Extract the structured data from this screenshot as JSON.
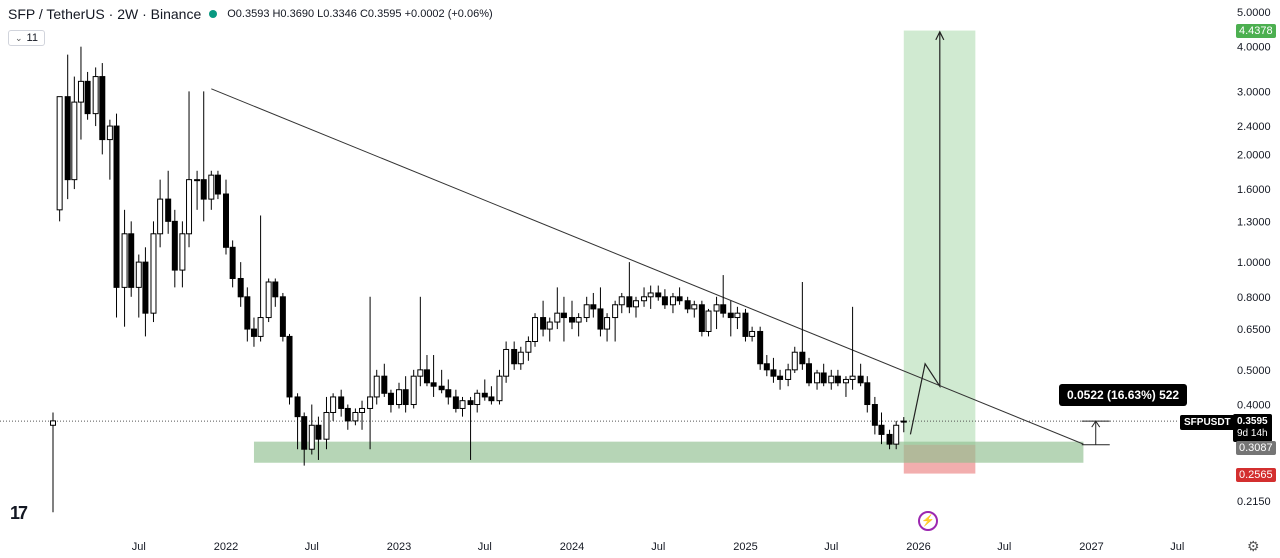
{
  "header": {
    "symbol": "SFP / TetherUS · 2W · Binance",
    "ohlc": "O0.3593 H0.3690 L0.3346 C0.3595 +0.0002 (+0.06%)"
  },
  "indicator_badge": "11",
  "tooltip": "0.0522 (16.63%) 522",
  "symbol_label": "SFPUSDT",
  "current_price": "0.3595",
  "countdown": "9d 14h",
  "price_labels": {
    "target": "4.4378",
    "entry": "0.3087",
    "stop": "0.2565"
  },
  "colors": {
    "up": "#089981",
    "down": "#000000",
    "target_zone": "#c8e6c9",
    "support_zone": "#8fbf8f",
    "stop_zone": "#ef9a9a"
  },
  "icons": [
    "tradingview-logo-icon",
    "lightning-icon",
    "gear-icon",
    "chevron-down-icon"
  ],
  "chart_data": {
    "type": "candlestick",
    "scale": "log",
    "y_ticks": [
      5.0,
      4.0,
      3.0,
      2.4,
      2.0,
      1.6,
      1.3,
      1.0,
      0.8,
      0.65,
      0.5,
      0.4,
      0.215
    ],
    "y_tick_labels": [
      "5.0000",
      "4.0000",
      "3.0000",
      "2.4000",
      "2.0000",
      "1.6000",
      "1.3000",
      "1.0000",
      "0.8000",
      "0.6500",
      "0.5000",
      "0.4000",
      "0.2150"
    ],
    "x_tick_labels": [
      "Jul",
      "2022",
      "Jul",
      "2023",
      "Jul",
      "2024",
      "Jul",
      "2025",
      "Jul",
      "2026",
      "Jul",
      "2027",
      "Jul"
    ],
    "x_tick_dates": [
      "2021-07",
      "2022-01",
      "2022-07",
      "2023-01",
      "2023-07",
      "2024-01",
      "2024-07",
      "2025-01",
      "2025-07",
      "2026-01",
      "2026-07",
      "2027-01",
      "2027-07"
    ],
    "candles": [
      {
        "d": "2021-01-01",
        "o": 0.35,
        "h": 0.38,
        "l": 0.2,
        "c": 0.36
      },
      {
        "d": "2021-01-15",
        "o": 1.4,
        "h": 2.9,
        "l": 1.3,
        "c": 2.9
      },
      {
        "d": "2021-02-01",
        "o": 2.9,
        "h": 3.8,
        "l": 1.5,
        "c": 1.7
      },
      {
        "d": "2021-02-15",
        "o": 1.7,
        "h": 3.3,
        "l": 1.6,
        "c": 2.8
      },
      {
        "d": "2021-03-01",
        "o": 2.8,
        "h": 4.0,
        "l": 2.2,
        "c": 3.2
      },
      {
        "d": "2021-03-15",
        "o": 3.2,
        "h": 3.4,
        "l": 2.5,
        "c": 2.6
      },
      {
        "d": "2021-04-01",
        "o": 2.6,
        "h": 3.5,
        "l": 2.4,
        "c": 3.3
      },
      {
        "d": "2021-04-15",
        "o": 3.3,
        "h": 3.6,
        "l": 2.0,
        "c": 2.2
      },
      {
        "d": "2021-05-01",
        "o": 2.2,
        "h": 2.5,
        "l": 1.7,
        "c": 2.4
      },
      {
        "d": "2021-05-15",
        "o": 2.4,
        "h": 2.6,
        "l": 0.7,
        "c": 0.85
      },
      {
        "d": "2021-06-01",
        "o": 0.85,
        "h": 1.4,
        "l": 0.66,
        "c": 1.2
      },
      {
        "d": "2021-06-15",
        "o": 1.2,
        "h": 1.3,
        "l": 0.8,
        "c": 0.85
      },
      {
        "d": "2021-07-01",
        "o": 0.85,
        "h": 1.05,
        "l": 0.7,
        "c": 1.0
      },
      {
        "d": "2021-07-15",
        "o": 1.0,
        "h": 1.1,
        "l": 0.62,
        "c": 0.72
      },
      {
        "d": "2021-08-01",
        "o": 0.72,
        "h": 1.3,
        "l": 0.68,
        "c": 1.2
      },
      {
        "d": "2021-08-15",
        "o": 1.2,
        "h": 1.7,
        "l": 1.1,
        "c": 1.5
      },
      {
        "d": "2021-09-01",
        "o": 1.5,
        "h": 1.8,
        "l": 1.2,
        "c": 1.3
      },
      {
        "d": "2021-09-15",
        "o": 1.3,
        "h": 1.4,
        "l": 0.85,
        "c": 0.95
      },
      {
        "d": "2021-10-01",
        "o": 0.95,
        "h": 1.3,
        "l": 0.85,
        "c": 1.2
      },
      {
        "d": "2021-10-15",
        "o": 1.2,
        "h": 3.0,
        "l": 1.1,
        "c": 1.7
      },
      {
        "d": "2021-11-01",
        "o": 1.7,
        "h": 1.8,
        "l": 1.4,
        "c": 1.7
      },
      {
        "d": "2021-11-15",
        "o": 1.7,
        "h": 3.0,
        "l": 1.3,
        "c": 1.5
      },
      {
        "d": "2021-12-01",
        "o": 1.5,
        "h": 1.8,
        "l": 1.4,
        "c": 1.75
      },
      {
        "d": "2021-12-15",
        "o": 1.75,
        "h": 1.8,
        "l": 1.5,
        "c": 1.55
      },
      {
        "d": "2022-01-01",
        "o": 1.55,
        "h": 1.7,
        "l": 1.05,
        "c": 1.1
      },
      {
        "d": "2022-01-15",
        "o": 1.1,
        "h": 1.15,
        "l": 0.85,
        "c": 0.9
      },
      {
        "d": "2022-02-01",
        "o": 0.9,
        "h": 1.0,
        "l": 0.75,
        "c": 0.8
      },
      {
        "d": "2022-02-15",
        "o": 0.8,
        "h": 0.85,
        "l": 0.6,
        "c": 0.65
      },
      {
        "d": "2022-03-01",
        "o": 0.65,
        "h": 0.7,
        "l": 0.58,
        "c": 0.62
      },
      {
        "d": "2022-03-15",
        "o": 0.62,
        "h": 1.35,
        "l": 0.6,
        "c": 0.7
      },
      {
        "d": "2022-04-01",
        "o": 0.7,
        "h": 0.9,
        "l": 0.68,
        "c": 0.88
      },
      {
        "d": "2022-04-15",
        "o": 0.88,
        "h": 0.9,
        "l": 0.75,
        "c": 0.8
      },
      {
        "d": "2022-05-01",
        "o": 0.8,
        "h": 0.82,
        "l": 0.6,
        "c": 0.62
      },
      {
        "d": "2022-05-15",
        "o": 0.62,
        "h": 0.63,
        "l": 0.4,
        "c": 0.42
      },
      {
        "d": "2022-06-01",
        "o": 0.42,
        "h": 0.43,
        "l": 0.3,
        "c": 0.37
      },
      {
        "d": "2022-06-15",
        "o": 0.37,
        "h": 0.38,
        "l": 0.27,
        "c": 0.3
      },
      {
        "d": "2022-07-01",
        "o": 0.3,
        "h": 0.4,
        "l": 0.29,
        "c": 0.35
      },
      {
        "d": "2022-07-15",
        "o": 0.35,
        "h": 0.37,
        "l": 0.28,
        "c": 0.32
      },
      {
        "d": "2022-08-01",
        "o": 0.32,
        "h": 0.42,
        "l": 0.3,
        "c": 0.38
      },
      {
        "d": "2022-08-15",
        "o": 0.38,
        "h": 0.43,
        "l": 0.36,
        "c": 0.42
      },
      {
        "d": "2022-09-01",
        "o": 0.42,
        "h": 0.44,
        "l": 0.37,
        "c": 0.39
      },
      {
        "d": "2022-09-15",
        "o": 0.39,
        "h": 0.4,
        "l": 0.34,
        "c": 0.36
      },
      {
        "d": "2022-10-01",
        "o": 0.36,
        "h": 0.39,
        "l": 0.35,
        "c": 0.38
      },
      {
        "d": "2022-10-15",
        "o": 0.38,
        "h": 0.41,
        "l": 0.34,
        "c": 0.39
      },
      {
        "d": "2022-11-01",
        "o": 0.39,
        "h": 0.8,
        "l": 0.3,
        "c": 0.42
      },
      {
        "d": "2022-11-15",
        "o": 0.42,
        "h": 0.5,
        "l": 0.4,
        "c": 0.48
      },
      {
        "d": "2022-12-01",
        "o": 0.48,
        "h": 0.52,
        "l": 0.42,
        "c": 0.43
      },
      {
        "d": "2022-12-15",
        "o": 0.43,
        "h": 0.44,
        "l": 0.38,
        "c": 0.4
      },
      {
        "d": "2023-01-01",
        "o": 0.4,
        "h": 0.46,
        "l": 0.39,
        "c": 0.44
      },
      {
        "d": "2023-01-15",
        "o": 0.44,
        "h": 0.48,
        "l": 0.38,
        "c": 0.4
      },
      {
        "d": "2023-02-01",
        "o": 0.4,
        "h": 0.5,
        "l": 0.39,
        "c": 0.48
      },
      {
        "d": "2023-02-15",
        "o": 0.48,
        "h": 0.8,
        "l": 0.45,
        "c": 0.5
      },
      {
        "d": "2023-03-01",
        "o": 0.5,
        "h": 0.55,
        "l": 0.45,
        "c": 0.46
      },
      {
        "d": "2023-03-15",
        "o": 0.46,
        "h": 0.55,
        "l": 0.42,
        "c": 0.45
      },
      {
        "d": "2023-04-01",
        "o": 0.45,
        "h": 0.5,
        "l": 0.43,
        "c": 0.44
      },
      {
        "d": "2023-04-15",
        "o": 0.44,
        "h": 0.47,
        "l": 0.4,
        "c": 0.42
      },
      {
        "d": "2023-05-01",
        "o": 0.42,
        "h": 0.44,
        "l": 0.38,
        "c": 0.39
      },
      {
        "d": "2023-05-15",
        "o": 0.39,
        "h": 0.42,
        "l": 0.37,
        "c": 0.41
      },
      {
        "d": "2023-06-01",
        "o": 0.41,
        "h": 0.42,
        "l": 0.28,
        "c": 0.4
      },
      {
        "d": "2023-06-15",
        "o": 0.4,
        "h": 0.44,
        "l": 0.38,
        "c": 0.43
      },
      {
        "d": "2023-07-01",
        "o": 0.43,
        "h": 0.47,
        "l": 0.41,
        "c": 0.42
      },
      {
        "d": "2023-07-15",
        "o": 0.42,
        "h": 0.45,
        "l": 0.4,
        "c": 0.41
      },
      {
        "d": "2023-08-01",
        "o": 0.41,
        "h": 0.5,
        "l": 0.4,
        "c": 0.48
      },
      {
        "d": "2023-08-15",
        "o": 0.48,
        "h": 0.6,
        "l": 0.46,
        "c": 0.57
      },
      {
        "d": "2023-09-01",
        "o": 0.57,
        "h": 0.6,
        "l": 0.5,
        "c": 0.52
      },
      {
        "d": "2023-09-15",
        "o": 0.52,
        "h": 0.58,
        "l": 0.5,
        "c": 0.56
      },
      {
        "d": "2023-10-01",
        "o": 0.56,
        "h": 0.62,
        "l": 0.53,
        "c": 0.6
      },
      {
        "d": "2023-10-15",
        "o": 0.6,
        "h": 0.72,
        "l": 0.58,
        "c": 0.7
      },
      {
        "d": "2023-11-01",
        "o": 0.7,
        "h": 0.78,
        "l": 0.62,
        "c": 0.65
      },
      {
        "d": "2023-11-15",
        "o": 0.65,
        "h": 0.7,
        "l": 0.6,
        "c": 0.68
      },
      {
        "d": "2023-12-01",
        "o": 0.68,
        "h": 0.85,
        "l": 0.65,
        "c": 0.72
      },
      {
        "d": "2023-12-15",
        "o": 0.72,
        "h": 0.8,
        "l": 0.6,
        "c": 0.7
      },
      {
        "d": "2024-01-01",
        "o": 0.7,
        "h": 0.78,
        "l": 0.65,
        "c": 0.68
      },
      {
        "d": "2024-01-15",
        "o": 0.68,
        "h": 0.72,
        "l": 0.62,
        "c": 0.7
      },
      {
        "d": "2024-02-01",
        "o": 0.7,
        "h": 0.8,
        "l": 0.68,
        "c": 0.76
      },
      {
        "d": "2024-02-15",
        "o": 0.76,
        "h": 0.82,
        "l": 0.7,
        "c": 0.74
      },
      {
        "d": "2024-03-01",
        "o": 0.74,
        "h": 0.85,
        "l": 0.62,
        "c": 0.65
      },
      {
        "d": "2024-03-15",
        "o": 0.65,
        "h": 0.72,
        "l": 0.6,
        "c": 0.7
      },
      {
        "d": "2024-04-01",
        "o": 0.7,
        "h": 0.78,
        "l": 0.6,
        "c": 0.76
      },
      {
        "d": "2024-04-15",
        "o": 0.76,
        "h": 0.82,
        "l": 0.72,
        "c": 0.8
      },
      {
        "d": "2024-05-01",
        "o": 0.8,
        "h": 1.0,
        "l": 0.72,
        "c": 0.75
      },
      {
        "d": "2024-05-15",
        "o": 0.75,
        "h": 0.8,
        "l": 0.7,
        "c": 0.78
      },
      {
        "d": "2024-06-01",
        "o": 0.78,
        "h": 0.85,
        "l": 0.75,
        "c": 0.8
      },
      {
        "d": "2024-06-15",
        "o": 0.8,
        "h": 0.86,
        "l": 0.74,
        "c": 0.82
      },
      {
        "d": "2024-07-01",
        "o": 0.82,
        "h": 0.86,
        "l": 0.78,
        "c": 0.8
      },
      {
        "d": "2024-07-15",
        "o": 0.8,
        "h": 0.84,
        "l": 0.74,
        "c": 0.76
      },
      {
        "d": "2024-08-01",
        "o": 0.76,
        "h": 0.82,
        "l": 0.72,
        "c": 0.8
      },
      {
        "d": "2024-08-15",
        "o": 0.8,
        "h": 0.85,
        "l": 0.76,
        "c": 0.78
      },
      {
        "d": "2024-09-01",
        "o": 0.78,
        "h": 0.8,
        "l": 0.72,
        "c": 0.74
      },
      {
        "d": "2024-09-15",
        "o": 0.74,
        "h": 0.78,
        "l": 0.7,
        "c": 0.76
      },
      {
        "d": "2024-10-01",
        "o": 0.76,
        "h": 0.78,
        "l": 0.62,
        "c": 0.64
      },
      {
        "d": "2024-10-15",
        "o": 0.64,
        "h": 0.74,
        "l": 0.62,
        "c": 0.73
      },
      {
        "d": "2024-11-01",
        "o": 0.73,
        "h": 0.8,
        "l": 0.65,
        "c": 0.76
      },
      {
        "d": "2024-11-15",
        "o": 0.76,
        "h": 0.92,
        "l": 0.7,
        "c": 0.72
      },
      {
        "d": "2024-12-01",
        "o": 0.72,
        "h": 0.78,
        "l": 0.62,
        "c": 0.7
      },
      {
        "d": "2024-12-15",
        "o": 0.7,
        "h": 0.75,
        "l": 0.65,
        "c": 0.72
      },
      {
        "d": "2025-01-01",
        "o": 0.72,
        "h": 0.74,
        "l": 0.6,
        "c": 0.62
      },
      {
        "d": "2025-01-15",
        "o": 0.62,
        "h": 0.66,
        "l": 0.6,
        "c": 0.64
      },
      {
        "d": "2025-02-01",
        "o": 0.64,
        "h": 0.66,
        "l": 0.5,
        "c": 0.52
      },
      {
        "d": "2025-02-15",
        "o": 0.52,
        "h": 0.55,
        "l": 0.48,
        "c": 0.5
      },
      {
        "d": "2025-03-01",
        "o": 0.5,
        "h": 0.54,
        "l": 0.46,
        "c": 0.48
      },
      {
        "d": "2025-03-15",
        "o": 0.48,
        "h": 0.5,
        "l": 0.44,
        "c": 0.47
      },
      {
        "d": "2025-04-01",
        "o": 0.47,
        "h": 0.52,
        "l": 0.45,
        "c": 0.5
      },
      {
        "d": "2025-04-15",
        "o": 0.5,
        "h": 0.58,
        "l": 0.49,
        "c": 0.56
      },
      {
        "d": "2025-05-01",
        "o": 0.56,
        "h": 0.88,
        "l": 0.5,
        "c": 0.52
      },
      {
        "d": "2025-05-15",
        "o": 0.52,
        "h": 0.54,
        "l": 0.45,
        "c": 0.46
      },
      {
        "d": "2025-06-01",
        "o": 0.46,
        "h": 0.5,
        "l": 0.44,
        "c": 0.49
      },
      {
        "d": "2025-06-15",
        "o": 0.49,
        "h": 0.52,
        "l": 0.45,
        "c": 0.46
      },
      {
        "d": "2025-07-01",
        "o": 0.46,
        "h": 0.5,
        "l": 0.44,
        "c": 0.48
      },
      {
        "d": "2025-07-15",
        "o": 0.48,
        "h": 0.5,
        "l": 0.45,
        "c": 0.46
      },
      {
        "d": "2025-08-01",
        "o": 0.46,
        "h": 0.48,
        "l": 0.42,
        "c": 0.47
      },
      {
        "d": "2025-08-15",
        "o": 0.47,
        "h": 0.75,
        "l": 0.44,
        "c": 0.48
      },
      {
        "d": "2025-09-01",
        "o": 0.48,
        "h": 0.52,
        "l": 0.45,
        "c": 0.46
      },
      {
        "d": "2025-09-15",
        "o": 0.46,
        "h": 0.48,
        "l": 0.38,
        "c": 0.4
      },
      {
        "d": "2025-10-01",
        "o": 0.4,
        "h": 0.42,
        "l": 0.33,
        "c": 0.35
      },
      {
        "d": "2025-10-15",
        "o": 0.35,
        "h": 0.38,
        "l": 0.31,
        "c": 0.33
      },
      {
        "d": "2025-11-01",
        "o": 0.33,
        "h": 0.34,
        "l": 0.3,
        "c": 0.31
      },
      {
        "d": "2025-11-15",
        "o": 0.31,
        "h": 0.36,
        "l": 0.3,
        "c": 0.35
      },
      {
        "d": "2025-12-01",
        "o": 0.3593,
        "h": 0.369,
        "l": 0.3346,
        "c": 0.3595
      }
    ],
    "trendline": {
      "from": {
        "d": "2021-12-01",
        "p": 3.05
      },
      "to": {
        "d": "2026-12-15",
        "p": 0.31
      }
    },
    "support_zone": {
      "from": "2022-03-01",
      "to": "2026-12-15",
      "low": 0.275,
      "high": 0.315
    },
    "target_zone": {
      "from": "2025-12-01",
      "to": "2026-05-01",
      "low": 0.3087,
      "high": 4.4378
    },
    "stop_zone": {
      "from": "2025-12-01",
      "to": "2026-05-01",
      "low": 0.2565,
      "high": 0.3087
    },
    "projection_path": [
      {
        "d": "2025-12-15",
        "p": 0.33
      },
      {
        "d": "2026-01-15",
        "p": 0.52
      },
      {
        "d": "2026-02-15",
        "p": 0.45
      },
      {
        "d": "2026-02-15",
        "p": 4.4
      }
    ],
    "measure": {
      "d": "2027-01-10",
      "low": 0.3087,
      "high": 0.3595
    }
  }
}
